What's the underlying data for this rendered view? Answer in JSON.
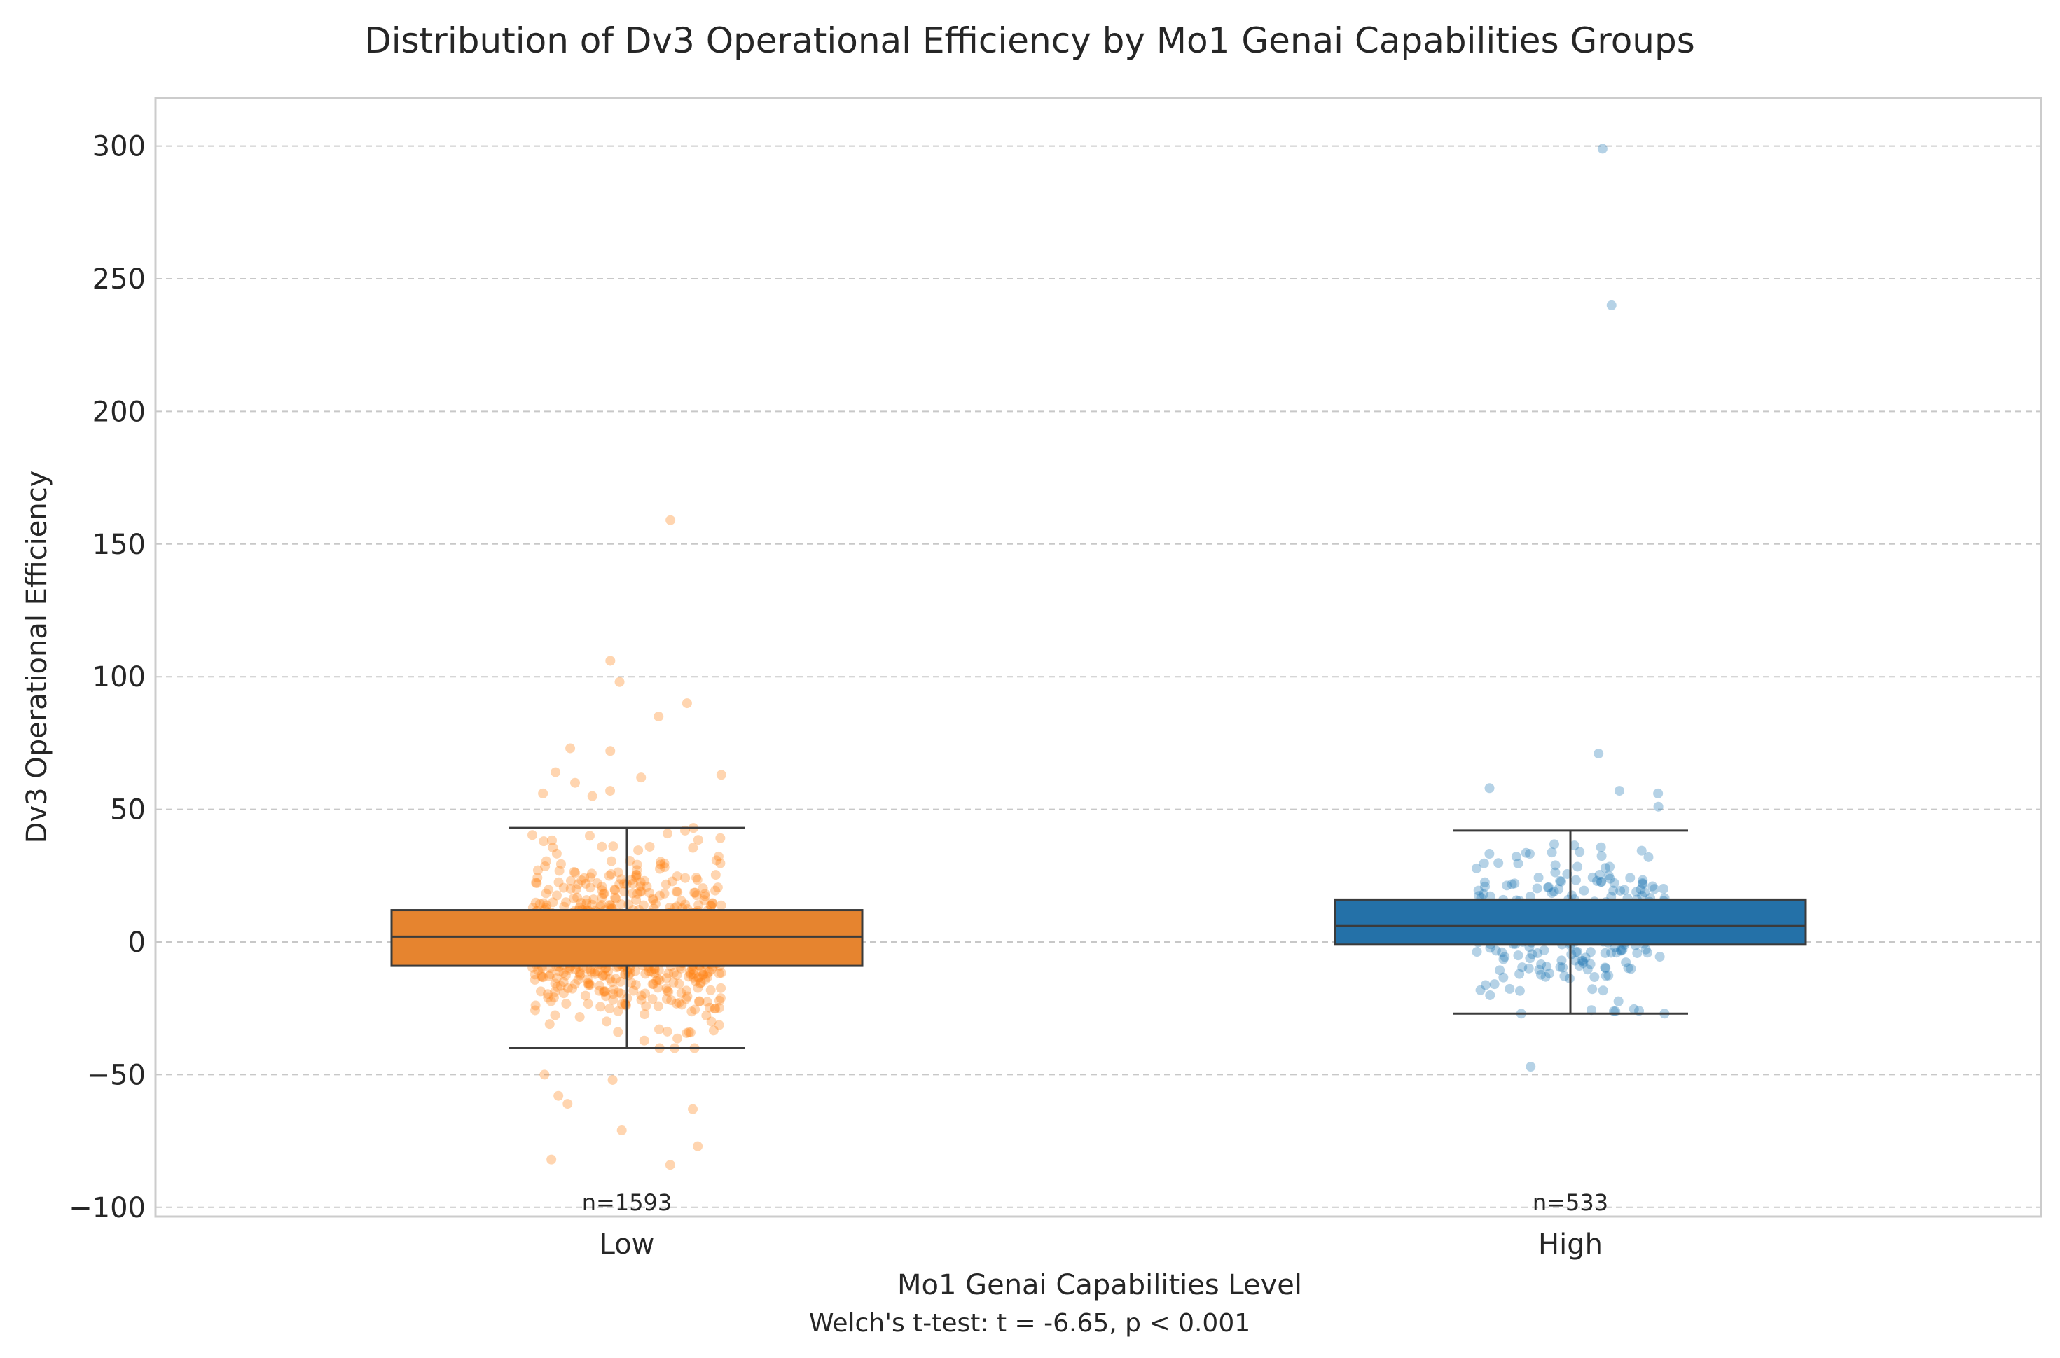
{
  "chart_data": {
    "type": "box",
    "title": "Distribution of Dv3 Operational Efficiency by Mo1 Genai Capabilities Groups",
    "xlabel": "Mo1 Genai Capabilities Level",
    "ylabel": "Dv3 Operational Efficiency",
    "footnote": "Welch's t-test: t = -6.65, p < 0.001",
    "ylim": [
      -103,
      318
    ],
    "yticks": [
      -100,
      -50,
      0,
      50,
      100,
      150,
      200,
      250,
      300
    ],
    "ytick_labels": [
      "−100",
      "−50",
      "0",
      "50",
      "100",
      "150",
      "200",
      "250",
      "300"
    ],
    "grid": true,
    "categories": [
      "Low",
      "High"
    ],
    "groups": [
      {
        "category": "Low",
        "n_label": "n=1593",
        "color": "#e6842f",
        "point_color": "#ff7f0e",
        "q1": -9,
        "median": 2,
        "q3": 12,
        "whisker_low": -40,
        "whisker_high": 43,
        "outliers": [
          159,
          106,
          98,
          90,
          85,
          73,
          72,
          64,
          63,
          62,
          60,
          57,
          56,
          55,
          -50,
          -52,
          -58,
          -61,
          -63,
          -71,
          -77,
          -82,
          -84
        ],
        "point_count": 700,
        "seed": 11
      },
      {
        "category": "High",
        "n_label": "n=533",
        "color": "#2471a8",
        "point_color": "#1f77b4",
        "q1": -1,
        "median": 6,
        "q3": 16,
        "whisker_low": -27,
        "whisker_high": 42,
        "outliers": [
          299,
          240,
          71,
          58,
          56,
          57,
          51,
          -47
        ],
        "point_count": 330,
        "seed": 23
      }
    ]
  }
}
